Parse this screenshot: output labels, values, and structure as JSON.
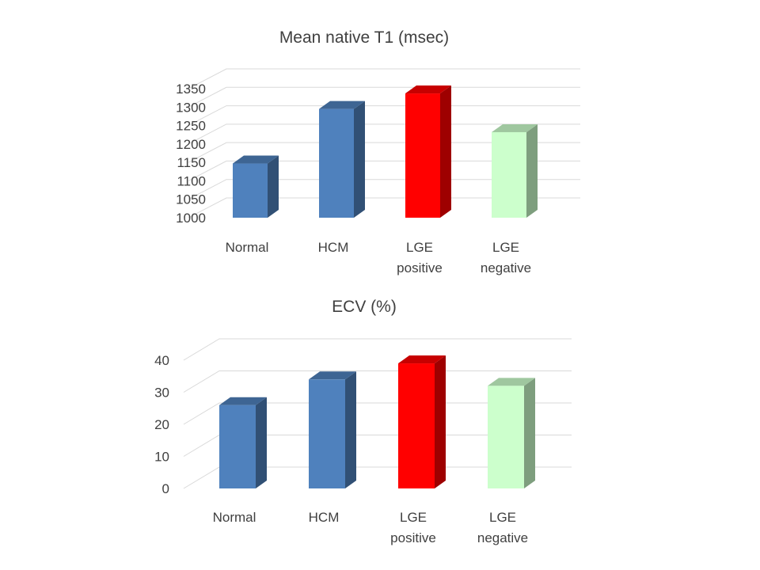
{
  "chart_data": [
    {
      "type": "bar",
      "title": "Mean native T1 (msec)",
      "categories": [
        [
          "Normal"
        ],
        [
          "HCM"
        ],
        [
          "LGE",
          "positive"
        ],
        [
          "LGE",
          "negative"
        ]
      ],
      "values": [
        1147,
        1295,
        1337,
        1232
      ],
      "yticks": [
        1000,
        1050,
        1100,
        1150,
        1200,
        1250,
        1300,
        1350
      ],
      "ylim": [
        1000,
        1350
      ],
      "colors": [
        "#4f81bd",
        "#4f81bd",
        "#ff0000",
        "#ccffcc"
      ],
      "grid": true,
      "style": "3d-column"
    },
    {
      "type": "bar",
      "title": "ECV (%)",
      "categories": [
        [
          "Normal"
        ],
        [
          "HCM"
        ],
        [
          "LGE",
          "positive"
        ],
        [
          "LGE",
          "negative"
        ]
      ],
      "values": [
        26,
        34,
        39,
        32
      ],
      "yticks": [
        0,
        10,
        20,
        30,
        40
      ],
      "ylim": [
        0,
        40
      ],
      "colors": [
        "#4f81bd",
        "#4f81bd",
        "#ff0000",
        "#ccffcc"
      ],
      "grid": true,
      "style": "3d-column"
    }
  ]
}
